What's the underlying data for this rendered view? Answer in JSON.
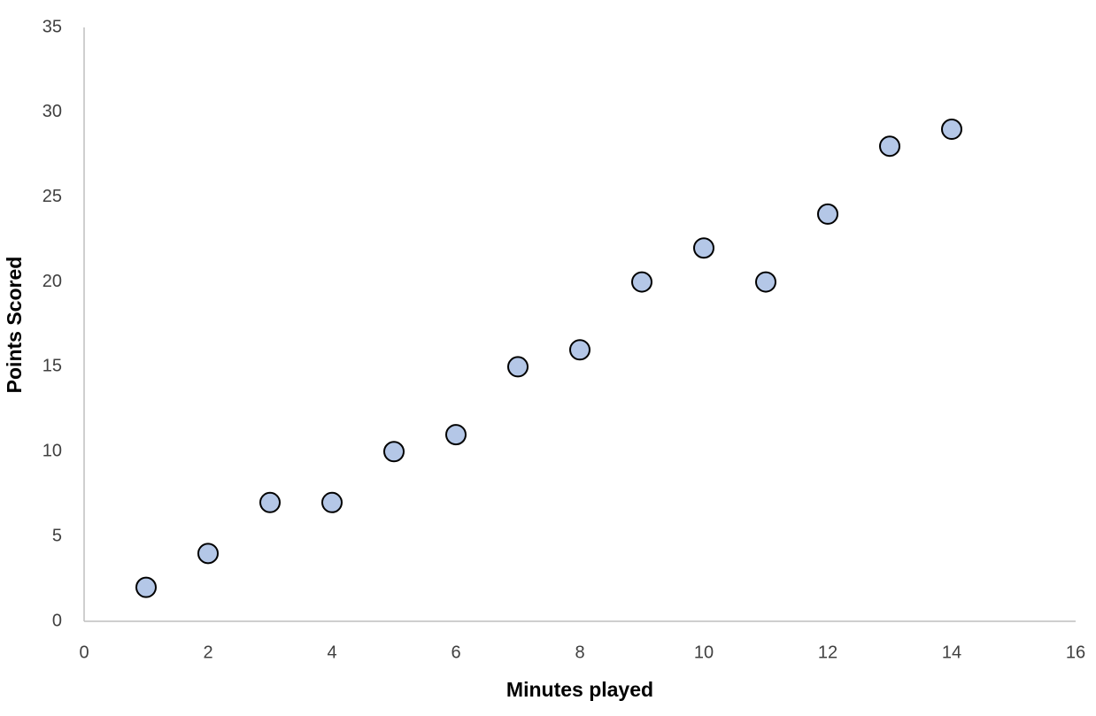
{
  "chart_data": {
    "type": "scatter",
    "x_label": "Minutes played",
    "y_label": "Points Scored",
    "x": [
      1,
      2,
      3,
      4,
      5,
      6,
      7,
      8,
      9,
      10,
      11,
      12,
      13,
      14
    ],
    "values": [
      2,
      4,
      7,
      7,
      10,
      11,
      15,
      16,
      20,
      22,
      20,
      24,
      28,
      29
    ],
    "color": "#b4c7e7",
    "edgecolor": "#000000",
    "xlim": [
      0,
      16
    ],
    "xticks": [
      0,
      2,
      4,
      6,
      8,
      10,
      12,
      14,
      16
    ],
    "ylim": [
      0,
      35
    ],
    "yticks": [
      0,
      5,
      10,
      15,
      20,
      25,
      30,
      35
    ],
    "grid": false
  }
}
